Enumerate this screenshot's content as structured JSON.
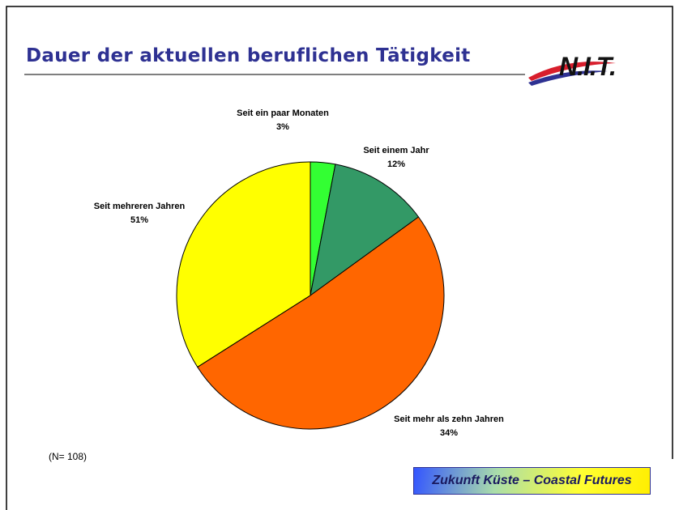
{
  "chart_data": {
    "type": "pie",
    "title": "Dauer der aktuellen beruflichen Tätigkeit",
    "categories": [
      "Seit ein paar Monaten",
      "Seit einem Jahr",
      "Seit mehreren Jahren",
      "Seit mehr als zehn Jahren"
    ],
    "values": [
      3,
      12,
      51,
      34
    ],
    "value_labels": [
      "3%",
      "12%",
      "51%",
      "34%"
    ],
    "colors": [
      "#33ff33",
      "#339966",
      "#ff6600",
      "#ffff00"
    ],
    "note": "(N= 108)"
  },
  "logo": "N.I.T.",
  "footer": "Zukunft Küste – Coastal Futures"
}
